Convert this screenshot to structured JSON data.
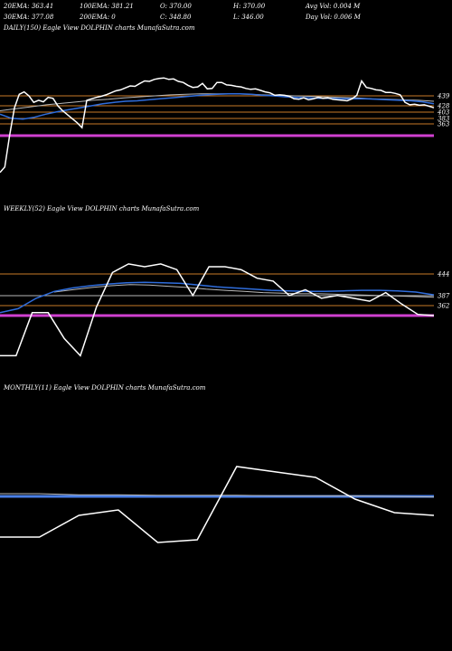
{
  "header": {
    "row1": [
      "20EMA: 363.41",
      "100EMA: 381.21",
      "O: 370.00",
      "H: 370.00",
      "Avg Vol: 0.004 M"
    ],
    "row2": [
      "30EMA: 377.08",
      "200EMA: 0",
      "C: 348.80",
      "L: 346.00",
      "Day Vol: 0.006  M"
    ]
  },
  "colors": {
    "background": "#000000",
    "price": "#ffffff",
    "ema_blue": "#2f6ddc",
    "ema_grey": "#b8b8b8",
    "support_magenta": "#d040d0",
    "support_blue": "#4a7fe6",
    "level_orange": "#c87a28"
  },
  "chart_data": [
    {
      "type": "line",
      "title": "DAILY(150) Eagle  View  DOLPHIN  charts MunafaSutra.com",
      "y_levels": [
        "439",
        "428",
        "403",
        "383",
        "363"
      ],
      "series": [
        {
          "role": "price",
          "values": [
            286,
            297,
            361,
            416,
            443,
            448,
            440,
            427,
            431,
            428,
            437,
            435,
            420,
            410,
            402,
            394,
            386,
            376,
            431,
            434,
            437,
            439,
            442,
            446,
            450,
            452,
            456,
            460,
            459,
            465,
            470,
            469,
            473,
            475,
            476,
            473,
            474,
            469,
            467,
            461,
            457,
            458,
            465,
            454,
            455,
            467,
            467,
            462,
            461,
            459,
            458,
            455,
            453,
            454,
            451,
            448,
            446,
            441,
            442,
            441,
            439,
            434,
            433,
            436,
            432,
            434,
            437,
            435,
            436,
            433,
            432,
            431,
            430,
            434,
            441,
            470,
            457,
            455,
            452,
            451,
            447,
            447,
            445,
            442,
            427,
            422,
            423,
            421,
            422,
            419,
            416
          ]
        },
        {
          "role": "ema-blue",
          "values": [
            403,
            395,
            393,
            397,
            403,
            408,
            412,
            416,
            420,
            424,
            427,
            429,
            430,
            432,
            434,
            436,
            438,
            440,
            442,
            443,
            444,
            444,
            443,
            441,
            440,
            438,
            437,
            436,
            435,
            435,
            434,
            434,
            434,
            433,
            432,
            431,
            430,
            428,
            424
          ]
        },
        {
          "role": "ema-grey",
          "values": [
            410,
            414,
            418,
            422,
            425,
            428,
            431,
            433,
            436,
            438,
            440,
            442,
            443,
            444,
            444,
            444,
            443,
            442,
            441,
            440,
            439,
            438,
            437,
            436,
            434,
            433,
            432,
            431,
            429
          ]
        }
      ]
    },
    {
      "type": "line",
      "title": "WEEKLY(52) Eagle  View  DOLPHIN  charts MunafaSutra.com",
      "y_levels": [
        "444",
        "387",
        "362"
      ],
      "series": [
        {
          "role": "price",
          "values": [
            270,
            270,
            345,
            345,
            300,
            270,
            355,
            415,
            430,
            425,
            430,
            420,
            375,
            425,
            425,
            420,
            405,
            400,
            375,
            385,
            370,
            375,
            370,
            365,
            380,
            360,
            342,
            340
          ]
        },
        {
          "role": "ema-blue",
          "values": [
            345,
            352,
            370,
            382,
            388,
            392,
            395,
            397,
            398,
            397,
            396,
            393,
            390,
            388,
            386,
            384,
            383,
            382,
            382,
            383,
            384,
            384,
            383,
            381,
            376
          ]
        },
        {
          "role": "ema-grey",
          "values": [
            381,
            385,
            389,
            392,
            394,
            393,
            391,
            389,
            386,
            384,
            382,
            380,
            379,
            378,
            378,
            377,
            376,
            375,
            374,
            373,
            372
          ]
        }
      ]
    },
    {
      "type": "line",
      "title": "MONTHLY(11) Eagle  View  DOLPHIN  charts MunafaSutra.com",
      "y_levels": [],
      "series": [
        {
          "role": "price",
          "values": [
            290,
            290,
            330,
            340,
            280,
            285,
            420,
            410,
            400,
            360,
            335,
            330
          ]
        },
        {
          "role": "ema-grey",
          "values": [
            370,
            370,
            368,
            368,
            367,
            367,
            367,
            366,
            366,
            366,
            365,
            364
          ]
        }
      ]
    }
  ]
}
